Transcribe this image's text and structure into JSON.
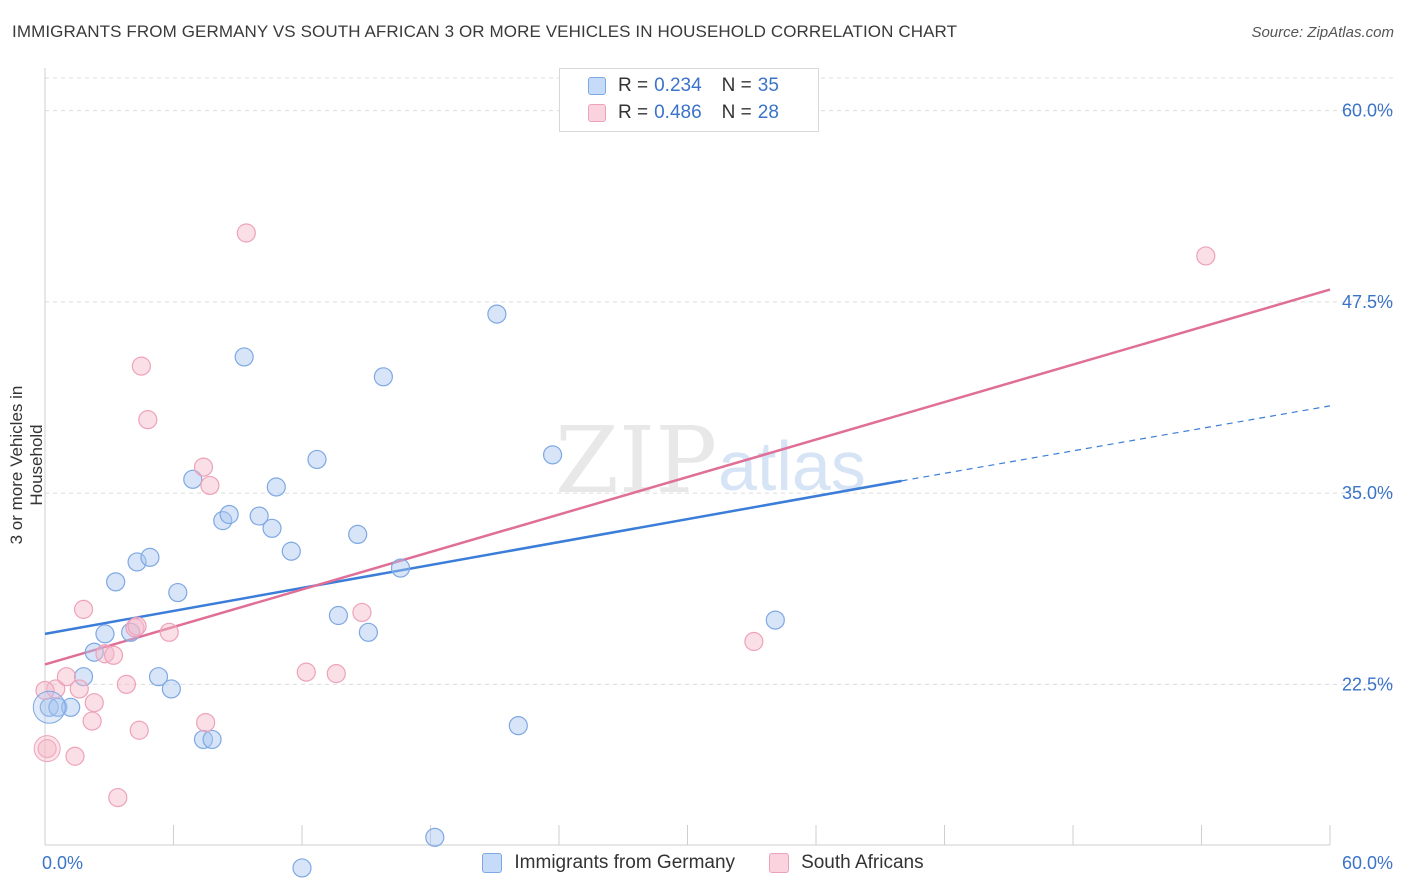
{
  "header": {
    "title": "IMMIGRANTS FROM GERMANY VS SOUTH AFRICAN 3 OR MORE VEHICLES IN HOUSEHOLD CORRELATION CHART",
    "source": "Source: ZipAtlas.com"
  },
  "watermark": {
    "zip": "ZIP",
    "atlas": "atlas"
  },
  "legend": {
    "rows": [
      {
        "r_label": "R =",
        "r_value": "0.234",
        "n_label": "N =",
        "n_value": "35",
        "color": "#a8c6f0"
      },
      {
        "r_label": "R =",
        "r_value": "0.486",
        "n_label": "N =",
        "n_value": "28",
        "color": "#f5b8c9"
      }
    ]
  },
  "bottom_legend": {
    "items": [
      {
        "label": "Immigrants from Germany",
        "color": "#a8c6f0"
      },
      {
        "label": "South Africans",
        "color": "#f5b8c9"
      }
    ]
  },
  "chart_data": {
    "type": "scatter",
    "title": "IMMIGRANTS FROM GERMANY VS SOUTH AFRICAN 3 OR MORE VEHICLES IN HOUSEHOLD CORRELATION CHART",
    "xlabel": "",
    "ylabel": "3 or more Vehicles in Household",
    "xlim": [
      0,
      60
    ],
    "ylim": [
      12,
      62
    ],
    "x_tick_labels": [
      "0.0%",
      "60.0%"
    ],
    "y_ticks": [
      22.5,
      35.0,
      47.5,
      60.0
    ],
    "y_tick_labels": [
      "22.5%",
      "35.0%",
      "47.5%",
      "60.0%"
    ],
    "grid": true,
    "series": [
      {
        "name": "Immigrants from Germany",
        "color": "#3b7dd8",
        "marker_color": "#a8c6f0",
        "points": [
          [
            0.2,
            21.0
          ],
          [
            0.6,
            21.0
          ],
          [
            1.2,
            21.0
          ],
          [
            1.8,
            23.0
          ],
          [
            2.3,
            24.6
          ],
          [
            2.8,
            25.8
          ],
          [
            3.3,
            29.2
          ],
          [
            4.0,
            25.9
          ],
          [
            4.3,
            30.5
          ],
          [
            4.9,
            30.8
          ],
          [
            5.3,
            23.0
          ],
          [
            5.9,
            22.2
          ],
          [
            6.2,
            28.5
          ],
          [
            6.9,
            35.9
          ],
          [
            7.4,
            18.9
          ],
          [
            7.8,
            18.9
          ],
          [
            8.3,
            33.2
          ],
          [
            8.6,
            33.6
          ],
          [
            9.3,
            43.9
          ],
          [
            10.0,
            33.5
          ],
          [
            10.6,
            32.7
          ],
          [
            10.8,
            35.4
          ],
          [
            11.5,
            31.2
          ],
          [
            12.0,
            10.5
          ],
          [
            12.7,
            37.2
          ],
          [
            13.7,
            27.0
          ],
          [
            14.6,
            32.3
          ],
          [
            15.1,
            25.9
          ],
          [
            15.8,
            42.6
          ],
          [
            16.6,
            30.1
          ],
          [
            18.2,
            12.5
          ],
          [
            21.1,
            46.7
          ],
          [
            22.1,
            19.8
          ],
          [
            23.7,
            37.5
          ],
          [
            34.1,
            26.7
          ]
        ],
        "trend": {
          "x0": 0,
          "y0": 25.8,
          "x1": 40.0,
          "y1": 35.8,
          "dashed_to_x": 60.0,
          "dashed_to_y": 40.7
        }
      },
      {
        "name": "South Africans",
        "color": "#e06f97",
        "marker_color": "#f5b8c9",
        "points": [
          [
            0.1,
            18.3
          ],
          [
            0.5,
            22.2
          ],
          [
            1.0,
            23.0
          ],
          [
            1.4,
            17.8
          ],
          [
            1.6,
            22.2
          ],
          [
            1.8,
            27.4
          ],
          [
            2.2,
            20.1
          ],
          [
            2.3,
            21.3
          ],
          [
            2.8,
            24.5
          ],
          [
            3.2,
            24.4
          ],
          [
            3.4,
            15.1
          ],
          [
            3.8,
            22.5
          ],
          [
            4.2,
            26.2
          ],
          [
            4.3,
            26.3
          ],
          [
            4.4,
            19.5
          ],
          [
            4.5,
            43.3
          ],
          [
            4.8,
            39.8
          ],
          [
            5.8,
            25.9
          ],
          [
            7.4,
            36.7
          ],
          [
            7.5,
            20.0
          ],
          [
            7.7,
            35.5
          ],
          [
            9.4,
            52.0
          ],
          [
            12.2,
            23.3
          ],
          [
            13.6,
            23.2
          ],
          [
            14.8,
            27.2
          ],
          [
            33.1,
            25.3
          ],
          [
            54.2,
            50.5
          ],
          [
            0.0,
            22.1
          ]
        ],
        "trend": {
          "x0": 0,
          "y0": 23.8,
          "x1": 60.0,
          "y1": 48.3
        }
      }
    ]
  }
}
